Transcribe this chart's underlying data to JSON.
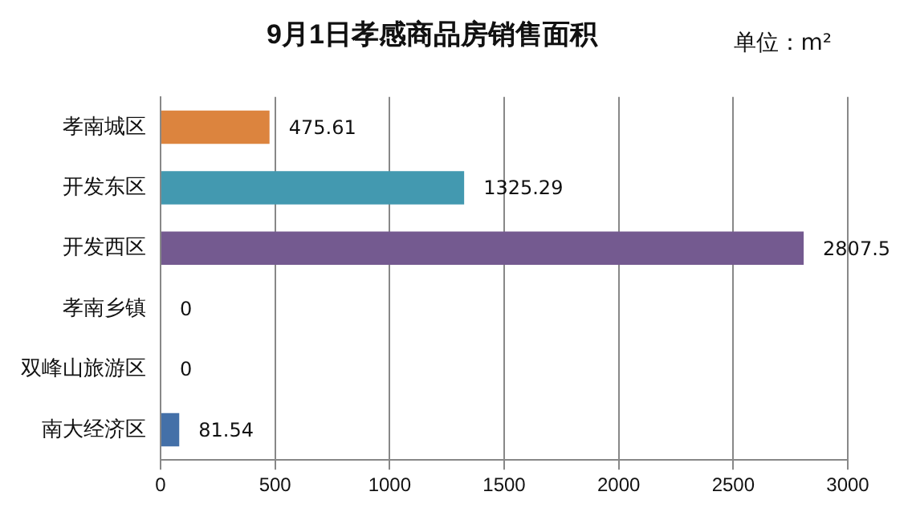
{
  "chart_data": {
    "type": "bar",
    "orientation": "horizontal",
    "title": "9月1日孝感商品房销售面积",
    "annotations": [
      "单位：m²"
    ],
    "categories": [
      "孝南城区",
      "开发东区",
      "开发西区",
      "孝南乡镇",
      "双峰山旅游区",
      "南大经济区"
    ],
    "values": [
      475.61,
      1325.29,
      2807.5,
      0,
      0,
      81.54
    ],
    "colors": [
      "#dc843e",
      "#4399b0",
      "#745a90",
      "#4a7ab8",
      "#4a7ab8",
      "#4470a8"
    ],
    "xlim": [
      0,
      3000
    ],
    "xticks": [
      0,
      500,
      1000,
      1500,
      2000,
      2500,
      3000
    ],
    "grid": "x",
    "data_labels": true
  }
}
